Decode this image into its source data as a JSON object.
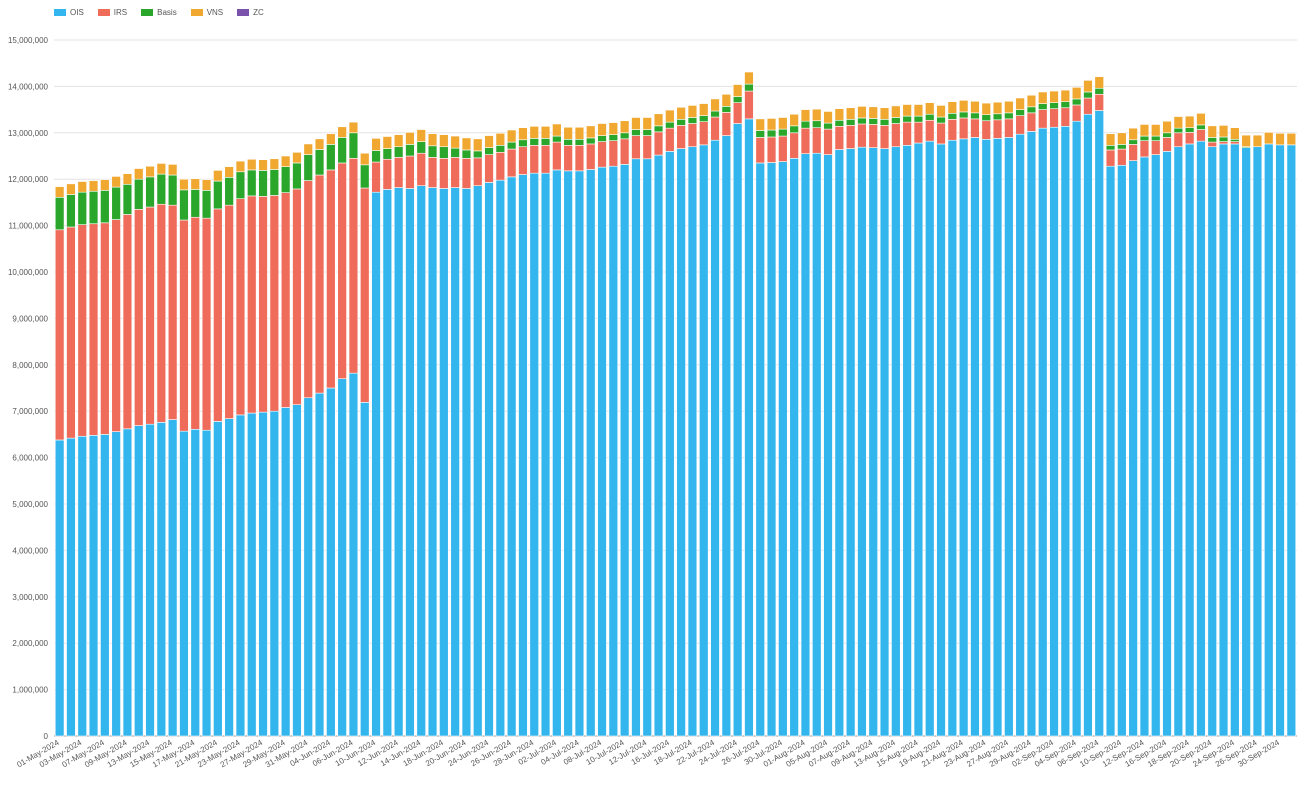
{
  "chart_data": {
    "type": "bar",
    "stacked": true,
    "legend_position": "top-left",
    "grid": true,
    "ylim": [
      0,
      15000000
    ],
    "y_ticks": [
      "0",
      "1,000,000",
      "2,000,000",
      "3,000,000",
      "4,000,000",
      "5,000,000",
      "6,000,000",
      "7,000,000",
      "8,000,000",
      "9,000,000",
      "10,000,000",
      "11,000,000",
      "12,000,000",
      "13,000,000",
      "14,000,000",
      "15,000,000"
    ],
    "y_tick_values": [
      0,
      1000000,
      2000000,
      3000000,
      4000000,
      5000000,
      6000000,
      7000000,
      8000000,
      9000000,
      10000000,
      11000000,
      12000000,
      13000000,
      14000000,
      15000000
    ],
    "x_tick_labels": [
      "01-May-2024",
      "03-May-2024",
      "07-May-2024",
      "09-May-2024",
      "13-May-2024",
      "15-May-2024",
      "17-May-2024",
      "21-May-2024",
      "23-May-2024",
      "27-May-2024",
      "29-May-2024",
      "31-May-2024",
      "04-Jun-2024",
      "06-Jun-2024",
      "10-Jun-2024",
      "12-Jun-2024",
      "14-Jun-2024",
      "18-Jun-2024",
      "20-Jun-2024",
      "24-Jun-2024",
      "26-Jun-2024",
      "28-Jun-2024",
      "02-Jul-2024",
      "04-Jul-2024",
      "08-Jul-2024",
      "10-Jul-2024",
      "12-Jul-2024",
      "16-Jul-2024",
      "18-Jul-2024",
      "22-Jul-2024",
      "24-Jul-2024",
      "26-Jul-2024",
      "30-Jul-2024",
      "01-Aug-2024",
      "05-Aug-2024",
      "07-Aug-2024",
      "09-Aug-2024",
      "13-Aug-2024",
      "15-Aug-2024",
      "19-Aug-2024",
      "21-Aug-2024",
      "23-Aug-2024",
      "27-Aug-2024",
      "29-Aug-2024",
      "02-Sep-2024",
      "04-Sep-2024",
      "06-Sep-2024",
      "10-Sep-2024",
      "12-Sep-2024",
      "16-Sep-2024",
      "18-Sep-2024",
      "20-Sep-2024",
      "24-Sep-2024",
      "26-Sep-2024",
      "30-Sep-2024"
    ],
    "bar_count": 110,
    "series": [
      {
        "name": "OIS",
        "color": "#33b5ee",
        "values": [
          6380000,
          6420000,
          6460000,
          6480000,
          6500000,
          6560000,
          6620000,
          6690000,
          6720000,
          6760000,
          6820000,
          6570000,
          6610000,
          6590000,
          6780000,
          6840000,
          6920000,
          6960000,
          6980000,
          7000000,
          7080000,
          7140000,
          7290000,
          7390000,
          7500000,
          7700000,
          7820000,
          7190000,
          11720000,
          11780000,
          11820000,
          11800000,
          11860000,
          11820000,
          11800000,
          11820000,
          11800000,
          11860000,
          11930000,
          11980000,
          12050000,
          12100000,
          12130000,
          12130000,
          12200000,
          12180000,
          12180000,
          12210000,
          12260000,
          12280000,
          12320000,
          12440000,
          12440000,
          12520000,
          12600000,
          12660000,
          12700000,
          12740000,
          12840000,
          12940000,
          13200000,
          13300000,
          12350000,
          12360000,
          12380000,
          12450000,
          12550000,
          12560000,
          12530000,
          12640000,
          12660000,
          12690000,
          12680000,
          12660000,
          12700000,
          12730000,
          12780000,
          12820000,
          12760000,
          12840000,
          12870000,
          12900000,
          12860000,
          12880000,
          12900000,
          12970000,
          13030000,
          13100000,
          13120000,
          13140000,
          13250000,
          13400000,
          13480000,
          12280000,
          12300000,
          12400000,
          12480000,
          12530000,
          12600000,
          12700000,
          12760000,
          12820000,
          12700000,
          12760000,
          12760000,
          12680000,
          12700000,
          12760000,
          12740000,
          12740000
        ]
      },
      {
        "name": "IRS",
        "color": "#ef6b5a",
        "values": [
          4530000,
          4550000,
          4560000,
          4560000,
          4560000,
          4570000,
          4620000,
          4660000,
          4680000,
          4700000,
          4620000,
          4550000,
          4570000,
          4570000,
          4580000,
          4600000,
          4660000,
          4680000,
          4650000,
          4650000,
          4630000,
          4650000,
          4680000,
          4700000,
          4700000,
          4650000,
          4630000,
          4620000,
          650000,
          650000,
          650000,
          700000,
          700000,
          650000,
          650000,
          650000,
          650000,
          600000,
          600000,
          600000,
          600000,
          600000,
          600000,
          600000,
          600000,
          550000,
          550000,
          550000,
          550000,
          550000,
          550000,
          500000,
          500000,
          500000,
          500000,
          500000,
          500000,
          500000,
          500000,
          500000,
          450000,
          600000,
          550000,
          550000,
          550000,
          550000,
          550000,
          550000,
          550000,
          500000,
          500000,
          500000,
          500000,
          500000,
          500000,
          500000,
          450000,
          450000,
          450000,
          450000,
          450000,
          400000,
          400000,
          400000,
          400000,
          400000,
          400000,
          400000,
          400000,
          400000,
          350000,
          350000,
          350000,
          350000,
          350000,
          350000,
          350000,
          300000,
          300000,
          300000,
          250000,
          250000,
          100000,
          50000,
          50000,
          0,
          0,
          0,
          0,
          0
        ]
      },
      {
        "name": "Basis",
        "color": "#2aa62a",
        "values": [
          700000,
          700000,
          700000,
          700000,
          700000,
          700000,
          650000,
          650000,
          650000,
          650000,
          650000,
          650000,
          600000,
          600000,
          600000,
          600000,
          580000,
          560000,
          560000,
          560000,
          560000,
          560000,
          560000,
          550000,
          550000,
          550000,
          550000,
          500000,
          250000,
          230000,
          230000,
          250000,
          250000,
          250000,
          250000,
          200000,
          180000,
          150000,
          150000,
          150000,
          150000,
          150000,
          150000,
          150000,
          130000,
          130000,
          130000,
          130000,
          130000,
          130000,
          130000,
          130000,
          130000,
          130000,
          130000,
          130000,
          130000,
          130000,
          130000,
          130000,
          130000,
          150000,
          150000,
          150000,
          150000,
          150000,
          150000,
          150000,
          130000,
          130000,
          130000,
          130000,
          130000,
          130000,
          130000,
          130000,
          130000,
          130000,
          130000,
          130000,
          130000,
          130000,
          130000,
          130000,
          130000,
          130000,
          130000,
          130000,
          130000,
          130000,
          130000,
          130000,
          130000,
          100000,
          100000,
          100000,
          100000,
          100000,
          100000,
          100000,
          100000,
          100000,
          100000,
          100000,
          50000,
          20000,
          0,
          0,
          0,
          0
        ]
      },
      {
        "name": "VNS",
        "color": "#f0a830",
        "values": [
          230000,
          230000,
          230000,
          230000,
          230000,
          230000,
          230000,
          230000,
          230000,
          230000,
          230000,
          230000,
          230000,
          230000,
          230000,
          230000,
          230000,
          230000,
          230000,
          230000,
          230000,
          230000,
          230000,
          230000,
          230000,
          230000,
          230000,
          250000,
          260000,
          260000,
          260000,
          260000,
          260000,
          260000,
          260000,
          260000,
          260000,
          260000,
          260000,
          260000,
          260000,
          260000,
          260000,
          260000,
          260000,
          260000,
          260000,
          260000,
          260000,
          260000,
          260000,
          260000,
          260000,
          260000,
          260000,
          260000,
          260000,
          260000,
          260000,
          260000,
          260000,
          260000,
          250000,
          250000,
          250000,
          250000,
          250000,
          250000,
          250000,
          250000,
          250000,
          250000,
          250000,
          250000,
          250000,
          250000,
          250000,
          250000,
          250000,
          250000,
          250000,
          250000,
          250000,
          250000,
          250000,
          250000,
          250000,
          250000,
          250000,
          250000,
          250000,
          250000,
          250000,
          250000,
          250000,
          250000,
          250000,
          250000,
          250000,
          250000,
          250000,
          250000,
          250000,
          250000,
          250000,
          250000,
          250000,
          250000,
          250000,
          250000
        ]
      },
      {
        "name": "ZC",
        "color": "#7b52ab",
        "values": [
          0,
          0,
          0,
          0,
          0,
          0,
          0,
          0,
          0,
          0,
          0,
          0,
          0,
          0,
          0,
          0,
          0,
          0,
          0,
          0,
          0,
          0,
          0,
          0,
          0,
          0,
          0,
          0,
          0,
          0,
          0,
          0,
          0,
          0,
          0,
          0,
          0,
          0,
          0,
          0,
          0,
          0,
          0,
          0,
          0,
          0,
          0,
          0,
          0,
          0,
          0,
          0,
          0,
          0,
          0,
          0,
          0,
          0,
          0,
          0,
          0,
          0,
          0,
          0,
          0,
          0,
          0,
          0,
          0,
          0,
          0,
          0,
          0,
          0,
          0,
          0,
          0,
          0,
          0,
          0,
          0,
          0,
          0,
          0,
          0,
          0,
          0,
          0,
          0,
          0,
          0,
          0,
          0,
          0,
          0,
          0,
          0,
          0,
          0,
          0,
          0,
          0,
          0,
          0,
          0,
          0,
          0,
          0,
          0,
          0
        ]
      }
    ]
  }
}
